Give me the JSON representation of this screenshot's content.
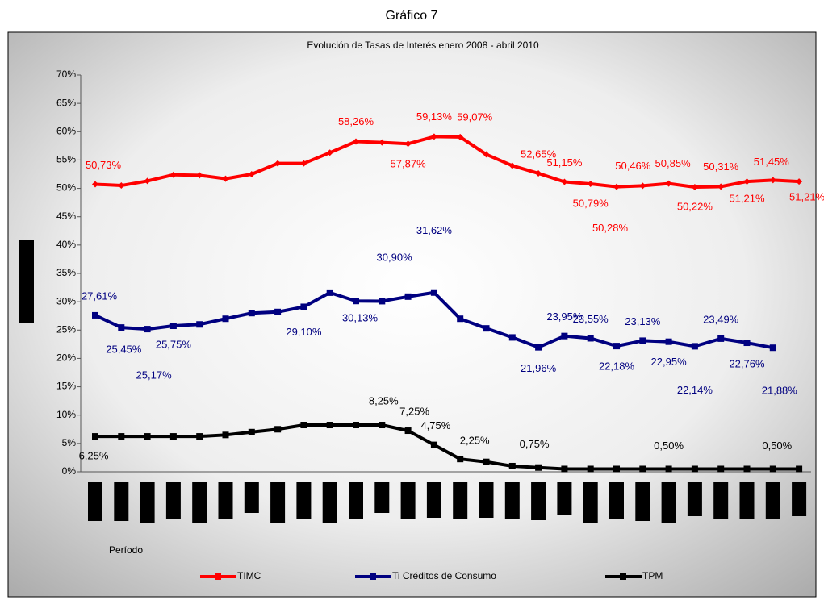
{
  "chart_data": {
    "type": "line",
    "title": "Gráfico 7",
    "subtitle": "Evolución de Tasas de Interés enero 2008 - abril 2010",
    "x_label": "Período",
    "categories": [
      null,
      null,
      null,
      null,
      null,
      null,
      null,
      null,
      null,
      null,
      null,
      null,
      null,
      null,
      null,
      null,
      null,
      null,
      null,
      null,
      null,
      null,
      null,
      null,
      null,
      null,
      null,
      null
    ],
    "ylim": [
      0,
      70
    ],
    "yticks": [
      {
        "value": 0,
        "label": "0%"
      },
      {
        "value": 5,
        "label": "5%"
      },
      {
        "value": 10,
        "label": "10%"
      },
      {
        "value": 15,
        "label": "15%"
      },
      {
        "value": 20,
        "label": "20%"
      },
      {
        "value": 25,
        "label": "25%"
      },
      {
        "value": 30,
        "label": "30%"
      },
      {
        "value": 35,
        "label": "35%"
      },
      {
        "value": 40,
        "label": "40%"
      },
      {
        "value": 45,
        "label": "45%"
      },
      {
        "value": 50,
        "label": "50%"
      },
      {
        "value": 55,
        "label": "55%"
      },
      {
        "value": 60,
        "label": "60%"
      },
      {
        "value": 65,
        "label": "65%"
      },
      {
        "value": 70,
        "label": "70%"
      }
    ],
    "grid": false,
    "legend": "bottom",
    "series": [
      {
        "name": "TIMC",
        "color": "#ff0000",
        "values": [
          50.73,
          50.5,
          51.3,
          52.4,
          52.3,
          51.7,
          52.5,
          54.4,
          54.4,
          56.3,
          58.26,
          58.1,
          57.87,
          59.13,
          59.07,
          56.0,
          54.0,
          52.65,
          51.15,
          50.79,
          50.28,
          50.46,
          50.85,
          50.22,
          50.31,
          51.21,
          51.45,
          51.21
        ],
        "value_labels": [
          "50,73%",
          null,
          null,
          null,
          null,
          null,
          null,
          null,
          null,
          null,
          "58,26%",
          null,
          "57,87%",
          "59,13%",
          "59,07%",
          null,
          null,
          "52,65%",
          "51,15%",
          "50,79%",
          "50,28%",
          "50,46%",
          "50,85%",
          "50,22%",
          "50,31%",
          "51,21%",
          "51,45%",
          "51,21%"
        ]
      },
      {
        "name": "Ti Créditos de Consumo",
        "color": "#000080",
        "values": [
          27.61,
          25.45,
          25.17,
          25.75,
          26.0,
          27.0,
          28.0,
          28.2,
          29.1,
          31.6,
          30.13,
          30.1,
          30.9,
          31.62,
          27.0,
          25.3,
          23.7,
          21.96,
          23.95,
          23.55,
          22.18,
          23.13,
          22.95,
          22.14,
          23.49,
          22.76,
          21.88,
          null
        ],
        "value_labels": [
          "27,61%",
          "25,45%",
          "25,17%",
          "25,75%",
          null,
          null,
          null,
          null,
          "29,10%",
          null,
          "30,13%",
          null,
          "30,90%",
          "31,62%",
          null,
          null,
          null,
          "21,96%",
          "23,95%",
          "23,55%",
          "22,18%",
          "23,13%",
          "22,95%",
          "22,14%",
          "23,49%",
          "22,76%",
          "21,88%",
          null
        ]
      },
      {
        "name": "TPM",
        "color": "#000000",
        "values": [
          6.25,
          6.25,
          6.25,
          6.25,
          6.25,
          6.5,
          7.0,
          7.5,
          8.25,
          8.25,
          8.25,
          8.25,
          7.25,
          4.75,
          2.25,
          1.75,
          1.0,
          0.75,
          0.5,
          0.5,
          0.5,
          0.5,
          0.5,
          0.5,
          0.5,
          0.5,
          0.5,
          0.5
        ],
        "value_labels": [
          "6,25%",
          null,
          null,
          null,
          null,
          null,
          null,
          null,
          null,
          null,
          null,
          "8,25%",
          "7,25%",
          "4,75%",
          "2,25%",
          null,
          null,
          "0,75%",
          null,
          null,
          null,
          null,
          "0,50%",
          null,
          null,
          null,
          "0,50%",
          null
        ]
      }
    ]
  }
}
